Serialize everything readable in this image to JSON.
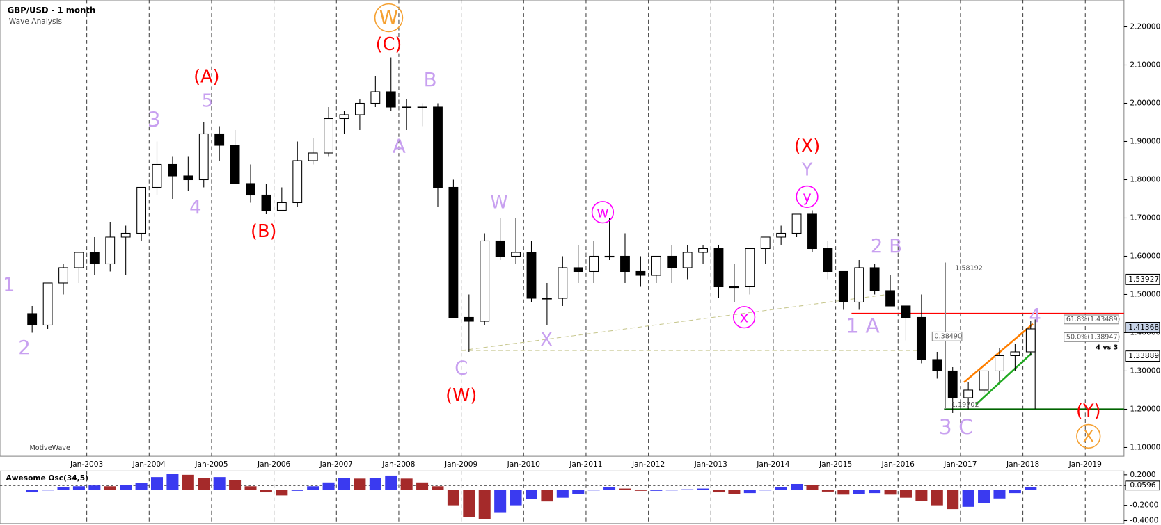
{
  "chart_data": {
    "type": "candlestick",
    "title": "GBP/USD - 1 month",
    "subtitle": "Wave Analysis",
    "watermark": "MotiveWave",
    "x": [
      2002.125,
      2002.375,
      2002.625,
      2002.875,
      2003.125,
      2003.375,
      2003.625,
      2003.875,
      2004.125,
      2004.375,
      2004.625,
      2004.875,
      2005.125,
      2005.375,
      2005.625,
      2005.875,
      2006.125,
      2006.375,
      2006.625,
      2006.875,
      2007.125,
      2007.375,
      2007.625,
      2007.875,
      2008.125,
      2008.375,
      2008.625,
      2008.875,
      2009.125,
      2009.375,
      2009.625,
      2009.875,
      2010.125,
      2010.375,
      2010.625,
      2010.875,
      2011.125,
      2011.375,
      2011.625,
      2011.875,
      2012.125,
      2012.375,
      2012.625,
      2012.875,
      2013.125,
      2013.375,
      2013.625,
      2013.875,
      2014.125,
      2014.375,
      2014.625,
      2014.875,
      2015.125,
      2015.375,
      2015.625,
      2015.875,
      2016.125,
      2016.375,
      2016.625,
      2016.875,
      2017.125,
      2017.375,
      2017.625,
      2017.875,
      2018.125
    ],
    "open": [
      1.45,
      1.42,
      1.53,
      1.57,
      1.61,
      1.58,
      1.65,
      1.66,
      1.78,
      1.84,
      1.81,
      1.8,
      1.92,
      1.89,
      1.79,
      1.76,
      1.72,
      1.74,
      1.85,
      1.87,
      1.96,
      1.97,
      2.0,
      2.03,
      1.99,
      1.99,
      1.99,
      1.78,
      1.44,
      1.43,
      1.64,
      1.6,
      1.61,
      1.49,
      1.49,
      1.57,
      1.56,
      1.6,
      1.6,
      1.56,
      1.55,
      1.6,
      1.57,
      1.61,
      1.62,
      1.52,
      1.52,
      1.62,
      1.65,
      1.66,
      1.71,
      1.62,
      1.56,
      1.48,
      1.57,
      1.51,
      1.47,
      1.44,
      1.33,
      1.3,
      1.23,
      1.25,
      1.3,
      1.34,
      1.35
    ],
    "high": [
      1.47,
      1.53,
      1.58,
      1.61,
      1.65,
      1.69,
      1.68,
      1.78,
      1.9,
      1.86,
      1.86,
      1.95,
      1.94,
      1.93,
      1.84,
      1.79,
      1.78,
      1.9,
      1.91,
      1.99,
      1.98,
      2.01,
      2.07,
      2.12,
      2.01,
      2.0,
      2.0,
      1.8,
      1.5,
      1.66,
      1.7,
      1.7,
      1.64,
      1.53,
      1.6,
      1.63,
      1.64,
      1.7,
      1.66,
      1.6,
      1.6,
      1.63,
      1.63,
      1.63,
      1.63,
      1.58,
      1.62,
      1.65,
      1.68,
      1.71,
      1.72,
      1.64,
      1.56,
      1.59,
      1.58,
      1.55,
      1.47,
      1.5,
      1.35,
      1.31,
      1.27,
      1.3,
      1.36,
      1.37,
      1.43
    ],
    "low": [
      1.4,
      1.41,
      1.5,
      1.53,
      1.55,
      1.56,
      1.55,
      1.64,
      1.76,
      1.75,
      1.77,
      1.78,
      1.85,
      1.79,
      1.74,
      1.71,
      1.72,
      1.73,
      1.84,
      1.86,
      1.92,
      1.93,
      1.99,
      1.98,
      1.93,
      1.94,
      1.73,
      1.44,
      1.35,
      1.42,
      1.59,
      1.58,
      1.48,
      1.42,
      1.47,
      1.53,
      1.53,
      1.59,
      1.53,
      1.52,
      1.53,
      1.53,
      1.54,
      1.58,
      1.49,
      1.48,
      1.5,
      1.58,
      1.63,
      1.65,
      1.61,
      1.54,
      1.46,
      1.46,
      1.5,
      1.47,
      1.38,
      1.32,
      1.28,
      1.19,
      1.2,
      1.24,
      1.27,
      1.3,
      1.34
    ],
    "close": [
      1.42,
      1.53,
      1.57,
      1.61,
      1.58,
      1.65,
      1.66,
      1.78,
      1.84,
      1.81,
      1.8,
      1.92,
      1.89,
      1.79,
      1.76,
      1.72,
      1.74,
      1.85,
      1.87,
      1.96,
      1.97,
      2.0,
      2.03,
      1.99,
      1.99,
      1.99,
      1.78,
      1.44,
      1.43,
      1.64,
      1.6,
      1.61,
      1.49,
      1.49,
      1.57,
      1.56,
      1.6,
      1.6,
      1.56,
      1.55,
      1.6,
      1.57,
      1.61,
      1.62,
      1.52,
      1.52,
      1.62,
      1.65,
      1.66,
      1.71,
      1.62,
      1.56,
      1.48,
      1.57,
      1.51,
      1.47,
      1.44,
      1.33,
      1.3,
      1.23,
      1.25,
      1.3,
      1.34,
      1.35,
      1.41
    ],
    "up_color": "#ffffff",
    "down_color": "#000000",
    "xlim": [
      2001.61,
      2019.62
    ],
    "ylim": [
      1.077,
      2.27
    ],
    "xticks": [
      {
        "value": 2003,
        "label": "Jan-2003"
      },
      {
        "value": 2004,
        "label": "Jan-2004"
      },
      {
        "value": 2005,
        "label": "Jan-2005"
      },
      {
        "value": 2006,
        "label": "Jan-2006"
      },
      {
        "value": 2007,
        "label": "Jan-2007"
      },
      {
        "value": 2008,
        "label": "Jan-2008"
      },
      {
        "value": 2009,
        "label": "Jan-2009"
      },
      {
        "value": 2010,
        "label": "Jan-2010"
      },
      {
        "value": 2011,
        "label": "Jan-2011"
      },
      {
        "value": 2012,
        "label": "Jan-2012"
      },
      {
        "value": 2013,
        "label": "Jan-2013"
      },
      {
        "value": 2014,
        "label": "Jan-2014"
      },
      {
        "value": 2015,
        "label": "Jan-2015"
      },
      {
        "value": 2016,
        "label": "Jan-2016"
      },
      {
        "value": 2017,
        "label": "Jan-2017"
      },
      {
        "value": 2018,
        "label": "Jan-2018"
      },
      {
        "value": 2019,
        "label": "Jan-2019"
      }
    ],
    "yticks": [
      {
        "value": 1.1,
        "label": "1.10000"
      },
      {
        "value": 1.2,
        "label": "1.20000"
      },
      {
        "value": 1.3,
        "label": "1.30000"
      },
      {
        "value": 1.4,
        "label": "1.40000"
      },
      {
        "value": 1.5,
        "label": "1.50000"
      },
      {
        "value": 1.6,
        "label": "1.60000"
      },
      {
        "value": 1.7,
        "label": "1.70000"
      },
      {
        "value": 1.8,
        "label": "1.80000"
      },
      {
        "value": 1.9,
        "label": "1.90000"
      },
      {
        "value": 2.0,
        "label": "2.00000"
      },
      {
        "value": 2.1,
        "label": "2.10000"
      },
      {
        "value": 2.2,
        "label": "2.20000"
      }
    ],
    "grid": true,
    "price_labels": [
      1.53927,
      1.41368,
      1.33889
    ],
    "levels": [
      {
        "value": 1.45,
        "color": "#ff0000"
      },
      {
        "value": 1.2,
        "color": "#006400"
      }
    ],
    "notes": [
      "1.58192",
      "0.38490",
      "1.19702",
      "61.8%(1.43489)",
      "50.0%(1.38947)",
      "4 vs 3"
    ],
    "annotations": [
      {
        "text": "1",
        "color": "#c8a0f0"
      },
      {
        "text": "2",
        "color": "#c8a0f0"
      },
      {
        "text": "3",
        "color": "#c8a0f0"
      },
      {
        "text": "5",
        "color": "#c8a0f0"
      },
      {
        "text": "(A)",
        "color": "#ff0000"
      },
      {
        "text": "4",
        "color": "#c8a0f0"
      },
      {
        "text": "(B)",
        "color": "#ff0000"
      },
      {
        "text": "W",
        "color": "#f5a030"
      },
      {
        "text": "(C)",
        "color": "#ff0000"
      },
      {
        "text": "B",
        "color": "#c8a0f0"
      },
      {
        "text": "A",
        "color": "#c8a0f0"
      },
      {
        "text": "C",
        "color": "#c8a0f0"
      },
      {
        "text": "(W)",
        "color": "#ff0000"
      },
      {
        "text": "W",
        "color": "#c8a0f0"
      },
      {
        "text": "X",
        "color": "#c8a0f0"
      },
      {
        "text": "w",
        "color": "#ff00ff"
      },
      {
        "text": "(X)",
        "color": "#ff0000"
      },
      {
        "text": "Y",
        "color": "#c8a0f0"
      },
      {
        "text": "y",
        "color": "#ff00ff"
      },
      {
        "text": "x",
        "color": "#ff00ff"
      },
      {
        "text": "2 B",
        "color": "#c8a0f0"
      },
      {
        "text": "1 A",
        "color": "#c8a0f0"
      },
      {
        "text": "3 C",
        "color": "#c8a0f0"
      },
      {
        "text": "4",
        "color": "#c8a0f0"
      },
      {
        "text": "(Y)",
        "color": "#ff0000"
      },
      {
        "text": "X",
        "color": "#f5a030"
      }
    ],
    "oscillator": {
      "title": "Awesome Osc(34,5)",
      "up_color": "#3a3af0",
      "down_color": "#a52a2a",
      "values": [
        -0.03,
        0.0,
        0.04,
        0.05,
        0.06,
        0.05,
        0.07,
        0.09,
        0.17,
        0.21,
        0.2,
        0.16,
        0.17,
        0.13,
        0.05,
        -0.03,
        -0.07,
        -0.01,
        0.05,
        0.1,
        0.16,
        0.15,
        0.16,
        0.19,
        0.15,
        0.1,
        0.05,
        -0.2,
        -0.35,
        -0.38,
        -0.3,
        -0.2,
        -0.12,
        -0.15,
        -0.1,
        -0.05,
        0.0,
        0.04,
        0.02,
        -0.01,
        -0.01,
        0.0,
        0.01,
        0.02,
        -0.03,
        -0.05,
        -0.04,
        0.0,
        0.04,
        0.08,
        0.07,
        -0.02,
        -0.06,
        -0.05,
        -0.04,
        -0.06,
        -0.1,
        -0.14,
        -0.2,
        -0.25,
        -0.22,
        -0.17,
        -0.11,
        -0.04,
        0.04
      ],
      "ylim": [
        -0.44,
        0.25
      ],
      "yticks": [
        {
          "value": 0.2,
          "label": "0.2000"
        },
        {
          "value": 0.0596,
          "label": "0.0596"
        },
        {
          "value": -0.2,
          "label": "-0.2000"
        },
        {
          "value": -0.4,
          "label": "-0.4000"
        }
      ]
    }
  }
}
